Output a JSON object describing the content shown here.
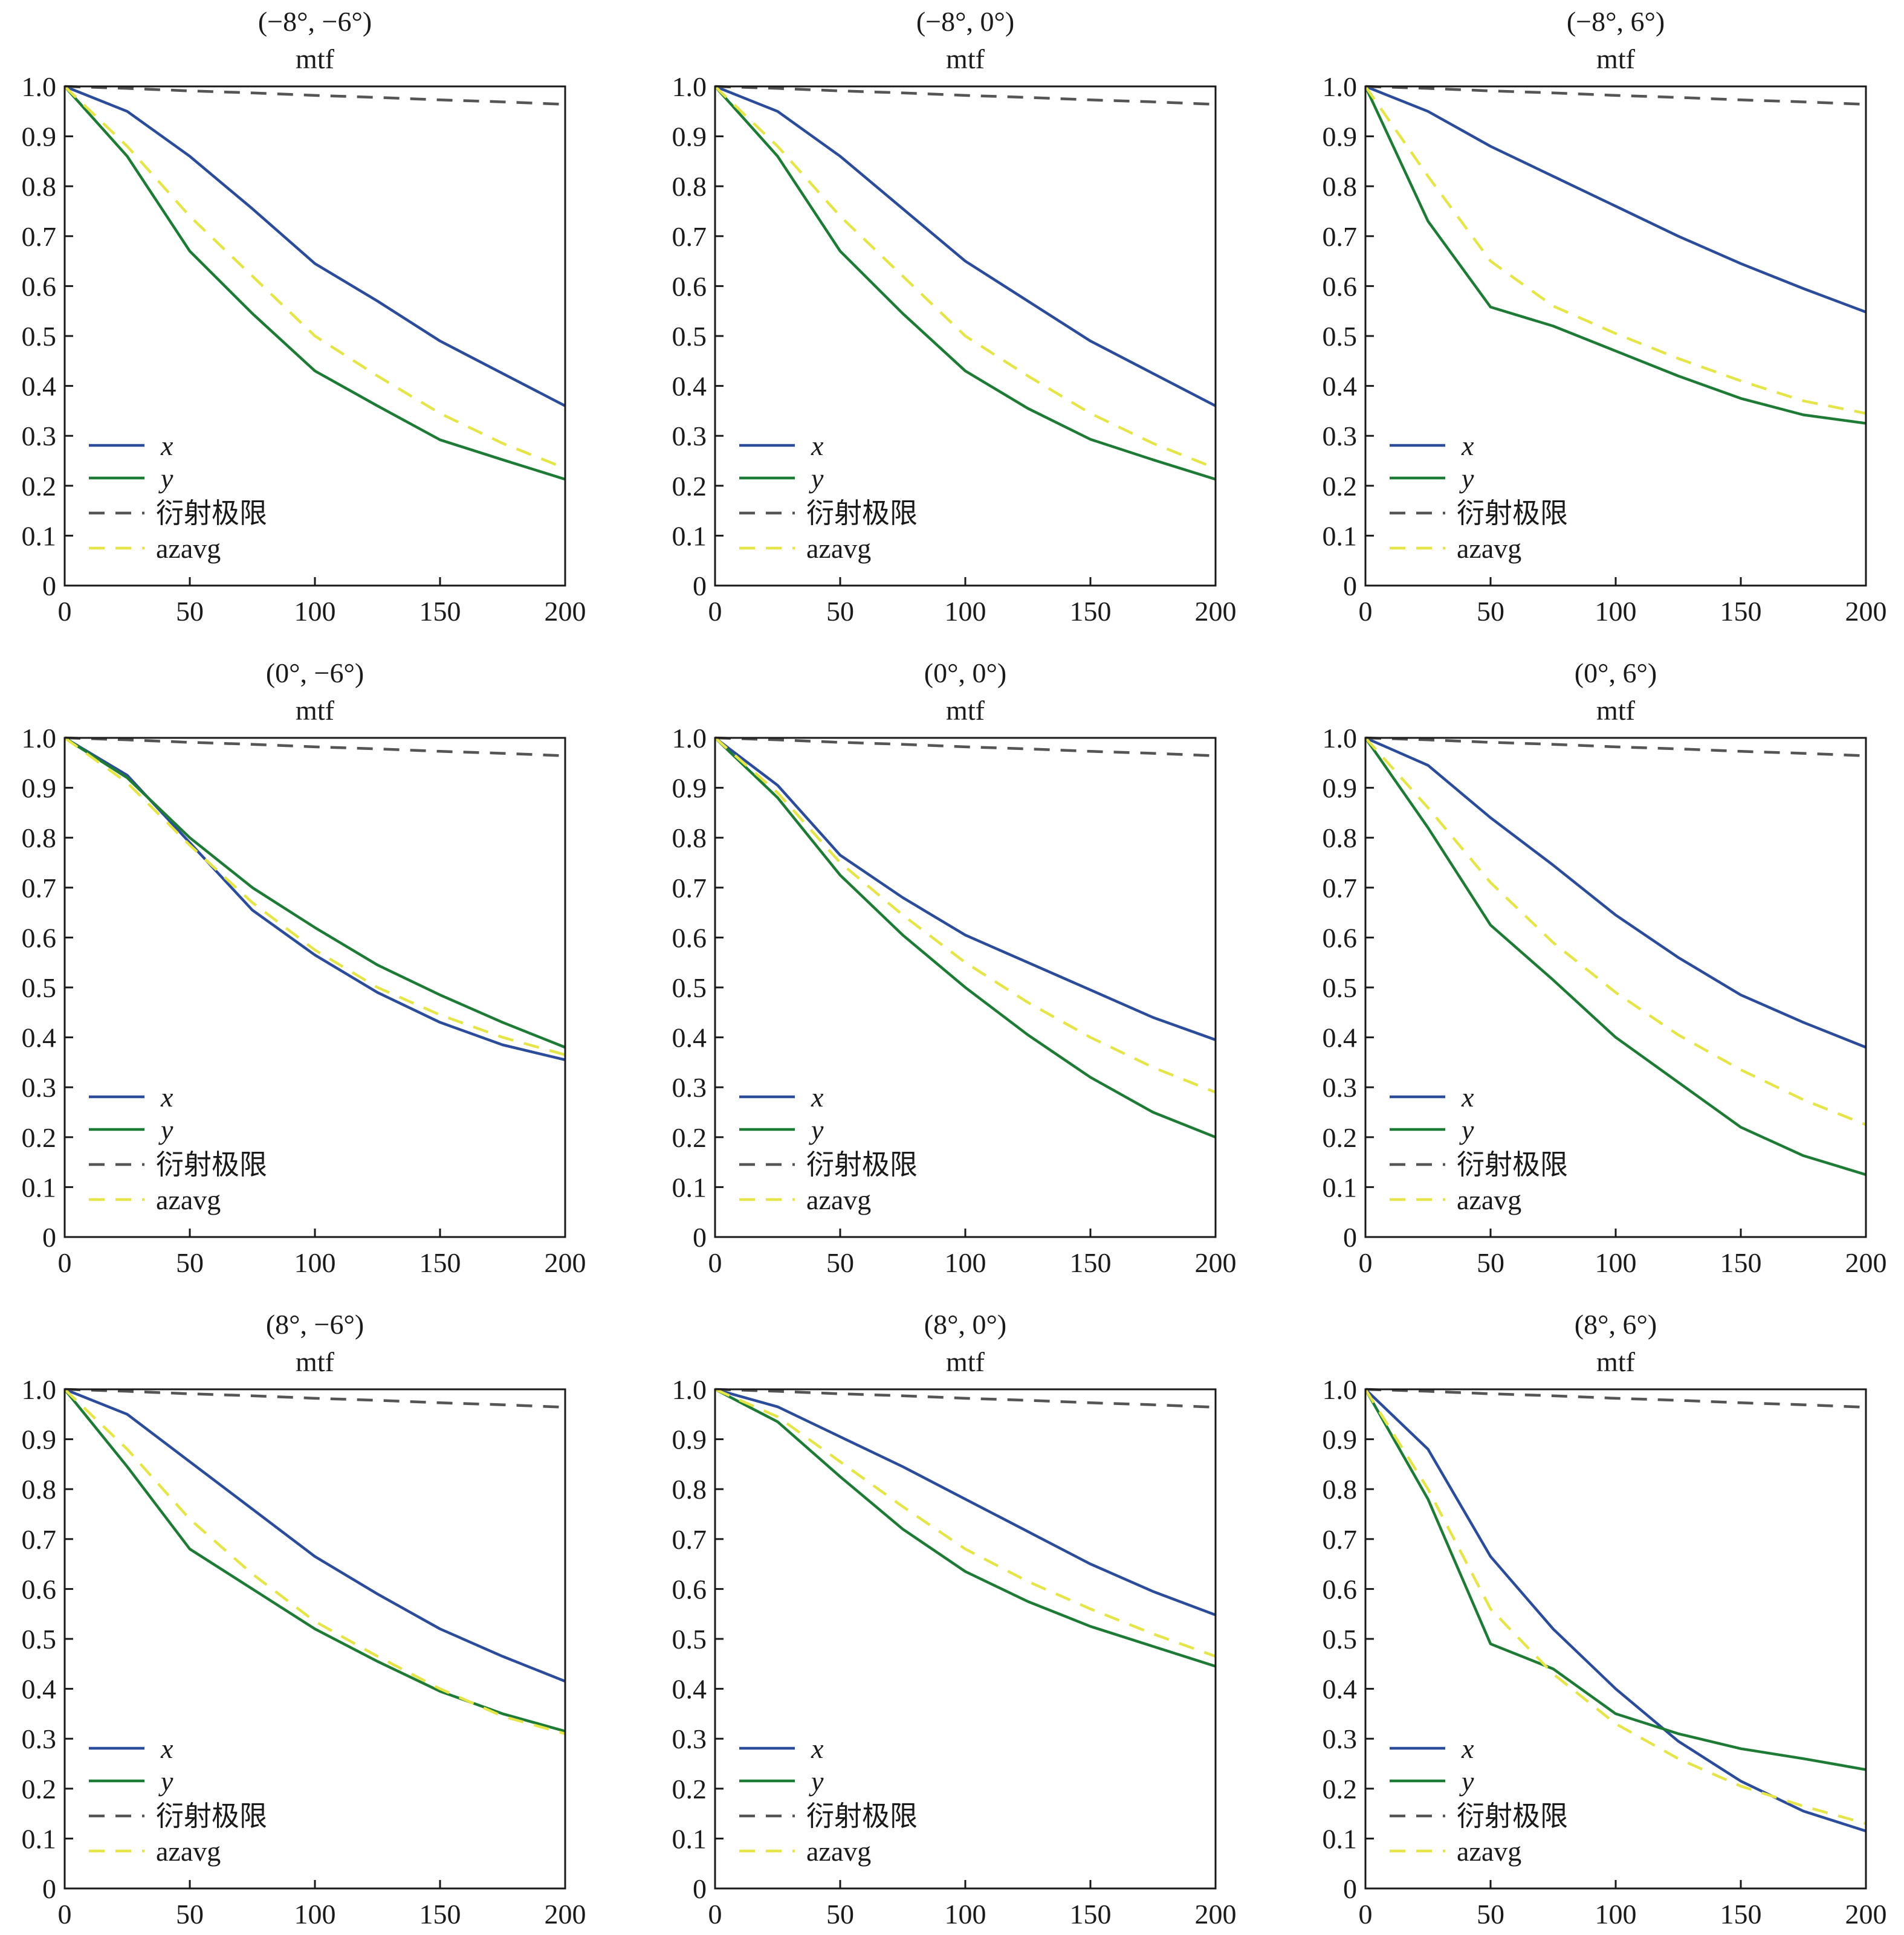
{
  "chart_data": [
    {
      "type": "line",
      "title": "(−8°, −6°)",
      "subtitle": "mtf",
      "xlim": [
        0,
        200
      ],
      "ylim": [
        0,
        1
      ],
      "x": [
        0,
        25,
        50,
        75,
        100,
        125,
        150,
        175,
        200
      ],
      "legend_position": "bottom-left",
      "series": [
        {
          "name": "x",
          "color": "#2b4c9b",
          "style": "solid",
          "values": [
            1.0,
            0.95,
            0.86,
            0.755,
            0.645,
            0.57,
            0.49,
            0.425,
            0.36
          ]
        },
        {
          "name": "y",
          "color": "#1e7b35",
          "style": "solid",
          "values": [
            1.0,
            0.86,
            0.67,
            0.545,
            0.43,
            0.36,
            0.292,
            0.252,
            0.213
          ]
        },
        {
          "name": "衍射极限",
          "color": "#555555",
          "style": "dashed",
          "values": [
            1.0,
            0.996,
            0.991,
            0.987,
            0.982,
            0.978,
            0.973,
            0.969,
            0.964
          ]
        },
        {
          "name": "azavg",
          "color": "#e5e54a",
          "style": "dashed",
          "values": [
            1.0,
            0.88,
            0.74,
            0.62,
            0.5,
            0.42,
            0.345,
            0.285,
            0.235
          ]
        }
      ]
    },
    {
      "type": "line",
      "title": "(−8°, 0°)",
      "subtitle": "mtf",
      "xlim": [
        0,
        200
      ],
      "ylim": [
        0,
        1
      ],
      "x": [
        0,
        25,
        50,
        75,
        100,
        125,
        150,
        175,
        200
      ],
      "legend_position": "bottom-left",
      "series": [
        {
          "name": "x",
          "color": "#2b4c9b",
          "style": "solid",
          "values": [
            1.0,
            0.95,
            0.86,
            0.755,
            0.65,
            0.57,
            0.49,
            0.425,
            0.36
          ]
        },
        {
          "name": "y",
          "color": "#1e7b35",
          "style": "solid",
          "values": [
            1.0,
            0.86,
            0.67,
            0.545,
            0.43,
            0.355,
            0.293,
            0.252,
            0.213
          ]
        },
        {
          "name": "衍射极限",
          "color": "#555555",
          "style": "dashed",
          "values": [
            1.0,
            0.996,
            0.991,
            0.987,
            0.982,
            0.978,
            0.973,
            0.969,
            0.964
          ]
        },
        {
          "name": "azavg",
          "color": "#e5e54a",
          "style": "dashed",
          "values": [
            1.0,
            0.88,
            0.74,
            0.62,
            0.5,
            0.42,
            0.345,
            0.285,
            0.235
          ]
        }
      ]
    },
    {
      "type": "line",
      "title": "(−8°, 6°)",
      "subtitle": "mtf",
      "xlim": [
        0,
        200
      ],
      "ylim": [
        0,
        1
      ],
      "x": [
        0,
        25,
        50,
        75,
        100,
        125,
        150,
        175,
        200
      ],
      "legend_position": "bottom-left",
      "series": [
        {
          "name": "x",
          "color": "#2b4c9b",
          "style": "solid",
          "values": [
            1.0,
            0.95,
            0.88,
            0.82,
            0.76,
            0.7,
            0.645,
            0.595,
            0.548
          ]
        },
        {
          "name": "y",
          "color": "#1e7b35",
          "style": "solid",
          "values": [
            1.0,
            0.73,
            0.558,
            0.52,
            0.47,
            0.42,
            0.375,
            0.342,
            0.325
          ]
        },
        {
          "name": "衍射极限",
          "color": "#555555",
          "style": "dashed",
          "values": [
            1.0,
            0.996,
            0.991,
            0.987,
            0.982,
            0.978,
            0.973,
            0.969,
            0.964
          ]
        },
        {
          "name": "azavg",
          "color": "#e5e54a",
          "style": "dashed",
          "values": [
            1.0,
            0.82,
            0.65,
            0.56,
            0.505,
            0.455,
            0.41,
            0.37,
            0.345
          ]
        }
      ]
    },
    {
      "type": "line",
      "title": "(0°, −6°)",
      "subtitle": "mtf",
      "xlim": [
        0,
        200
      ],
      "ylim": [
        0,
        1
      ],
      "x": [
        0,
        25,
        50,
        75,
        100,
        125,
        150,
        175,
        200
      ],
      "legend_position": "bottom-left",
      "series": [
        {
          "name": "x",
          "color": "#2b4c9b",
          "style": "solid",
          "values": [
            1.0,
            0.925,
            0.79,
            0.655,
            0.565,
            0.49,
            0.43,
            0.385,
            0.355
          ]
        },
        {
          "name": "y",
          "color": "#1e7b35",
          "style": "solid",
          "values": [
            1.0,
            0.92,
            0.8,
            0.7,
            0.62,
            0.545,
            0.485,
            0.43,
            0.38
          ]
        },
        {
          "name": "衍射极限",
          "color": "#555555",
          "style": "dashed",
          "values": [
            1.0,
            0.996,
            0.991,
            0.987,
            0.982,
            0.978,
            0.973,
            0.969,
            0.964
          ]
        },
        {
          "name": "azavg",
          "color": "#e5e54a",
          "style": "dashed",
          "values": [
            1.0,
            0.91,
            0.785,
            0.67,
            0.575,
            0.5,
            0.445,
            0.4,
            0.365
          ]
        }
      ]
    },
    {
      "type": "line",
      "title": "(0°, 0°)",
      "subtitle": "mtf",
      "xlim": [
        0,
        200
      ],
      "ylim": [
        0,
        1
      ],
      "x": [
        0,
        25,
        50,
        75,
        100,
        125,
        150,
        175,
        200
      ],
      "legend_position": "bottom-left",
      "series": [
        {
          "name": "x",
          "color": "#2b4c9b",
          "style": "solid",
          "values": [
            1.0,
            0.905,
            0.765,
            0.68,
            0.605,
            0.55,
            0.495,
            0.44,
            0.395
          ]
        },
        {
          "name": "y",
          "color": "#1e7b35",
          "style": "solid",
          "values": [
            1.0,
            0.88,
            0.725,
            0.605,
            0.5,
            0.405,
            0.32,
            0.25,
            0.2
          ]
        },
        {
          "name": "衍射极限",
          "color": "#555555",
          "style": "dashed",
          "values": [
            1.0,
            0.996,
            0.991,
            0.987,
            0.982,
            0.978,
            0.973,
            0.969,
            0.964
          ]
        },
        {
          "name": "azavg",
          "color": "#e5e54a",
          "style": "dashed",
          "values": [
            1.0,
            0.89,
            0.75,
            0.645,
            0.55,
            0.47,
            0.4,
            0.34,
            0.29
          ]
        }
      ]
    },
    {
      "type": "line",
      "title": "(0°, 6°)",
      "subtitle": "mtf",
      "xlim": [
        0,
        200
      ],
      "ylim": [
        0,
        1
      ],
      "x": [
        0,
        25,
        50,
        75,
        100,
        125,
        150,
        175,
        200
      ],
      "legend_position": "bottom-left",
      "series": [
        {
          "name": "x",
          "color": "#2b4c9b",
          "style": "solid",
          "values": [
            1.0,
            0.945,
            0.84,
            0.745,
            0.645,
            0.56,
            0.485,
            0.43,
            0.38
          ]
        },
        {
          "name": "y",
          "color": "#1e7b35",
          "style": "solid",
          "values": [
            1.0,
            0.82,
            0.625,
            0.515,
            0.4,
            0.31,
            0.22,
            0.163,
            0.125
          ]
        },
        {
          "name": "衍射极限",
          "color": "#555555",
          "style": "dashed",
          "values": [
            1.0,
            0.996,
            0.991,
            0.987,
            0.982,
            0.978,
            0.973,
            0.969,
            0.964
          ]
        },
        {
          "name": "azavg",
          "color": "#e5e54a",
          "style": "dashed",
          "values": [
            1.0,
            0.86,
            0.71,
            0.59,
            0.49,
            0.405,
            0.335,
            0.275,
            0.225
          ]
        }
      ]
    },
    {
      "type": "line",
      "title": "(8°, −6°)",
      "subtitle": "mtf",
      "xlim": [
        0,
        200
      ],
      "ylim": [
        0,
        1
      ],
      "x": [
        0,
        25,
        50,
        75,
        100,
        125,
        150,
        175,
        200
      ],
      "legend_position": "bottom-left",
      "series": [
        {
          "name": "x",
          "color": "#2b4c9b",
          "style": "solid",
          "values": [
            1.0,
            0.95,
            0.855,
            0.76,
            0.665,
            0.59,
            0.52,
            0.465,
            0.415
          ]
        },
        {
          "name": "y",
          "color": "#1e7b35",
          "style": "solid",
          "values": [
            1.0,
            0.845,
            0.68,
            0.6,
            0.52,
            0.455,
            0.395,
            0.35,
            0.315
          ]
        },
        {
          "name": "衍射极限",
          "color": "#555555",
          "style": "dashed",
          "values": [
            1.0,
            0.996,
            0.991,
            0.987,
            0.982,
            0.978,
            0.973,
            0.969,
            0.964
          ]
        },
        {
          "name": "azavg",
          "color": "#e5e54a",
          "style": "dashed",
          "values": [
            1.0,
            0.88,
            0.74,
            0.63,
            0.535,
            0.465,
            0.4,
            0.345,
            0.31
          ]
        }
      ]
    },
    {
      "type": "line",
      "title": "(8°, 0°)",
      "subtitle": "mtf",
      "xlim": [
        0,
        200
      ],
      "ylim": [
        0,
        1
      ],
      "x": [
        0,
        25,
        50,
        75,
        100,
        125,
        150,
        175,
        200
      ],
      "legend_position": "bottom-left",
      "series": [
        {
          "name": "x",
          "color": "#2b4c9b",
          "style": "solid",
          "values": [
            1.0,
            0.965,
            0.905,
            0.845,
            0.78,
            0.715,
            0.65,
            0.595,
            0.548
          ]
        },
        {
          "name": "y",
          "color": "#1e7b35",
          "style": "solid",
          "values": [
            1.0,
            0.935,
            0.825,
            0.72,
            0.635,
            0.575,
            0.525,
            0.485,
            0.445
          ]
        },
        {
          "name": "衍射极限",
          "color": "#555555",
          "style": "dashed",
          "values": [
            1.0,
            0.996,
            0.991,
            0.987,
            0.982,
            0.978,
            0.973,
            0.969,
            0.964
          ]
        },
        {
          "name": "azavg",
          "color": "#e5e54a",
          "style": "dashed",
          "values": [
            1.0,
            0.945,
            0.855,
            0.765,
            0.68,
            0.615,
            0.56,
            0.51,
            0.465
          ]
        }
      ]
    },
    {
      "type": "line",
      "title": "(8°, 6°)",
      "subtitle": "mtf",
      "xlim": [
        0,
        200
      ],
      "ylim": [
        0,
        1
      ],
      "x": [
        0,
        25,
        50,
        75,
        100,
        125,
        150,
        175,
        200
      ],
      "legend_position": "bottom-left",
      "series": [
        {
          "name": "x",
          "color": "#2b4c9b",
          "style": "solid",
          "values": [
            1.0,
            0.88,
            0.665,
            0.52,
            0.4,
            0.295,
            0.215,
            0.155,
            0.115
          ]
        },
        {
          "name": "y",
          "color": "#1e7b35",
          "style": "solid",
          "values": [
            1.0,
            0.78,
            0.49,
            0.44,
            0.35,
            0.31,
            0.28,
            0.26,
            0.238
          ]
        },
        {
          "name": "衍射极限",
          "color": "#555555",
          "style": "dashed",
          "values": [
            1.0,
            0.996,
            0.991,
            0.987,
            0.982,
            0.978,
            0.973,
            0.969,
            0.964
          ]
        },
        {
          "name": "azavg",
          "color": "#e5e54a",
          "style": "dashed",
          "values": [
            1.0,
            0.8,
            0.56,
            0.43,
            0.33,
            0.26,
            0.205,
            0.165,
            0.13
          ]
        }
      ]
    }
  ],
  "axis": {
    "x_ticks": [
      0,
      50,
      100,
      150,
      200
    ],
    "y_ticks": [
      0,
      0.1,
      0.2,
      0.3,
      0.4,
      0.5,
      0.6,
      0.7,
      0.8,
      0.9,
      1.0
    ],
    "y_tick_labels": [
      "0",
      "0.1",
      "0.2",
      "0.3",
      "0.4",
      "0.5",
      "0.6",
      "0.7",
      "0.8",
      "0.9",
      "1.0"
    ],
    "x_tick_labels": [
      "0",
      "50",
      "100",
      "150",
      "200"
    ],
    "grid": false
  }
}
